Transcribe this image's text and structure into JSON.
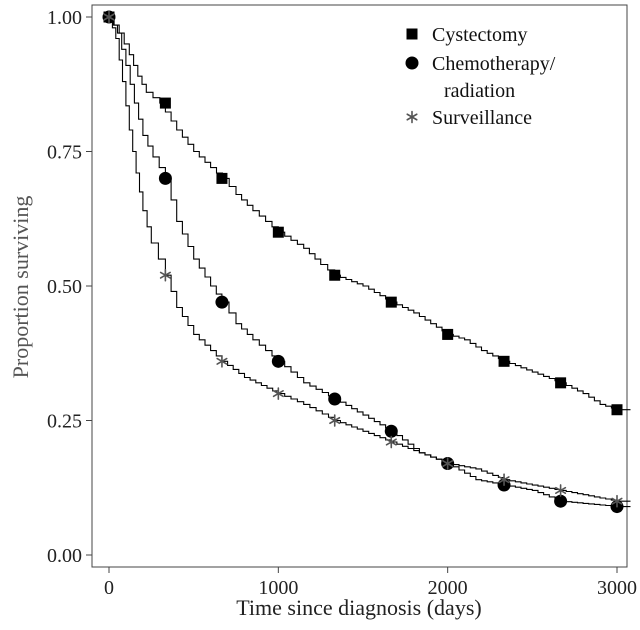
{
  "chart_data": {
    "type": "line",
    "title": "",
    "xlabel": "Time since diagnosis (days)",
    "ylabel": "Proportion surviving",
    "xlim": [
      0,
      3000
    ],
    "ylim": [
      0,
      1.0
    ],
    "xticks": [
      0,
      1000,
      2000,
      3000
    ],
    "xtick_labels": [
      "0",
      "1000",
      "2000",
      "3000"
    ],
    "yticks": [
      0,
      0.25,
      0.5,
      0.75,
      1.0
    ],
    "ytick_labels": [
      "0.00",
      "0.25",
      "0.50",
      "0.75",
      "1.00"
    ],
    "grid": false,
    "legend_position": "top-right",
    "line_color": "#000000",
    "series": [
      {
        "name": "Cystectomy",
        "marker": "square",
        "curve_x": [
          0,
          60,
          120,
          170,
          220,
          300,
          400,
          500,
          600,
          670,
          750,
          850,
          1000,
          1150,
          1250,
          1333,
          1500,
          1667,
          1800,
          2000,
          2100,
          2200,
          2333,
          2500,
          2667,
          2800,
          2900,
          3000,
          3080
        ],
        "curve_y": [
          1.0,
          0.97,
          0.93,
          0.89,
          0.86,
          0.84,
          0.79,
          0.75,
          0.72,
          0.7,
          0.67,
          0.64,
          0.6,
          0.57,
          0.54,
          0.52,
          0.5,
          0.47,
          0.45,
          0.41,
          0.4,
          0.38,
          0.36,
          0.34,
          0.32,
          0.3,
          0.28,
          0.27,
          0.27
        ],
        "marker_x": [
          0,
          333,
          667,
          1000,
          1333,
          1667,
          2000,
          2333,
          2667,
          3000
        ],
        "marker_y": [
          1.0,
          0.84,
          0.7,
          0.6,
          0.52,
          0.47,
          0.41,
          0.36,
          0.32,
          0.27
        ]
      },
      {
        "name": "Chemotherapy/\nradiation",
        "marker": "circle",
        "curve_x": [
          0,
          50,
          100,
          150,
          200,
          260,
          333,
          400,
          500,
          600,
          667,
          750,
          850,
          1000,
          1150,
          1333,
          1500,
          1667,
          1833,
          2000,
          2167,
          2333,
          2500,
          2667,
          2833,
          3000,
          3080
        ],
        "curve_y": [
          1.0,
          0.97,
          0.91,
          0.84,
          0.78,
          0.74,
          0.7,
          0.62,
          0.55,
          0.5,
          0.47,
          0.43,
          0.4,
          0.36,
          0.32,
          0.29,
          0.26,
          0.23,
          0.19,
          0.17,
          0.14,
          0.13,
          0.12,
          0.1,
          0.095,
          0.09,
          0.09
        ],
        "marker_x": [
          0,
          333,
          667,
          1000,
          1333,
          1667,
          2000,
          2333,
          2667,
          3000
        ],
        "marker_y": [
          1.0,
          0.7,
          0.47,
          0.36,
          0.29,
          0.23,
          0.17,
          0.13,
          0.1,
          0.09
        ]
      },
      {
        "name": "Surveillance",
        "marker": "asterisk",
        "curve_x": [
          0,
          40,
          80,
          120,
          160,
          200,
          250,
          333,
          400,
          500,
          600,
          667,
          800,
          1000,
          1150,
          1333,
          1500,
          1667,
          1833,
          2000,
          2167,
          2333,
          2500,
          2667,
          2833,
          3000,
          3080
        ],
        "curve_y": [
          1.0,
          0.96,
          0.88,
          0.79,
          0.71,
          0.64,
          0.58,
          0.52,
          0.46,
          0.41,
          0.38,
          0.36,
          0.33,
          0.3,
          0.28,
          0.25,
          0.23,
          0.21,
          0.19,
          0.17,
          0.16,
          0.14,
          0.13,
          0.12,
          0.11,
          0.1,
          0.1
        ],
        "marker_x": [
          0,
          333,
          667,
          1000,
          1333,
          1667,
          2000,
          2333,
          2667,
          3000
        ],
        "marker_y": [
          1.0,
          0.52,
          0.36,
          0.3,
          0.25,
          0.21,
          0.17,
          0.14,
          0.12,
          0.1
        ]
      }
    ],
    "legend": [
      {
        "label_lines": [
          "Cystectomy"
        ],
        "marker": "square"
      },
      {
        "label_lines": [
          "Chemotherapy/",
          "radiation"
        ],
        "marker": "circle"
      },
      {
        "label_lines": [
          "Surveillance"
        ],
        "marker": "asterisk"
      }
    ]
  }
}
